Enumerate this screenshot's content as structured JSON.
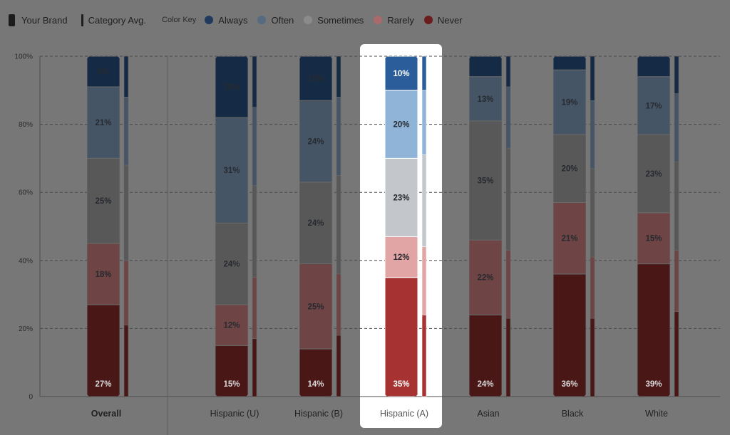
{
  "legend": {
    "your_brand": "Your Brand",
    "category_avg": "Category Avg.",
    "color_key": "Color Key",
    "keys": [
      {
        "name": "Always",
        "color": "#2b5d9a"
      },
      {
        "name": "Often",
        "color": "#8fb4d8"
      },
      {
        "name": "Sometimes",
        "color": "#c3c7cc"
      },
      {
        "name": "Rarely",
        "color": "#e2a5a5"
      },
      {
        "name": "Never",
        "color": "#a63232"
      }
    ]
  },
  "chart_data": {
    "type": "bar",
    "stacked": true,
    "y_tick_labels": [
      "0",
      "20%",
      "40%",
      "60%",
      "80%",
      "100%"
    ],
    "ylim": [
      0,
      100
    ],
    "grid": true,
    "highlighted_category": "Hispanic (A)",
    "categories": [
      "Overall",
      "Hispanic (U)",
      "Hispanic (B)",
      "Hispanic (A)",
      "Asian",
      "Black",
      "White"
    ],
    "series": [
      {
        "name": "Never",
        "values": [
          27,
          15,
          14,
          35,
          24,
          36,
          39
        ]
      },
      {
        "name": "Rarely",
        "values": [
          18,
          12,
          25,
          12,
          22,
          21,
          15
        ]
      },
      {
        "name": "Sometimes",
        "values": [
          25,
          24,
          24,
          23,
          35,
          20,
          23
        ]
      },
      {
        "name": "Often",
        "values": [
          21,
          31,
          24,
          20,
          13,
          19,
          17
        ]
      },
      {
        "name": "Always",
        "values": [
          9,
          18,
          13,
          10,
          6,
          4,
          6
        ]
      }
    ],
    "value_labels": [
      [
        "27%",
        "18%",
        "25%",
        "21%",
        "9%"
      ],
      [
        "15%",
        "12%",
        "24%",
        "31%",
        "18%"
      ],
      [
        "14%",
        "25%",
        "24%",
        "24%",
        "13%"
      ],
      [
        "35%",
        "12%",
        "23%",
        "20%",
        "10%"
      ],
      [
        "24%",
        "22%",
        "35%",
        "13%",
        ""
      ],
      [
        "36%",
        "21%",
        "20%",
        "19%",
        ""
      ],
      [
        "39%",
        "15%",
        "23%",
        "17%",
        ""
      ]
    ],
    "category_avg": [
      [
        21,
        19,
        28,
        20,
        12
      ],
      [
        17,
        18,
        27,
        23,
        15
      ],
      [
        18,
        18,
        29,
        23,
        12
      ],
      [
        24,
        20,
        27,
        19,
        10
      ],
      [
        23,
        20,
        30,
        18,
        9
      ],
      [
        23,
        18,
        26,
        20,
        13
      ],
      [
        25,
        18,
        26,
        20,
        11
      ]
    ]
  }
}
